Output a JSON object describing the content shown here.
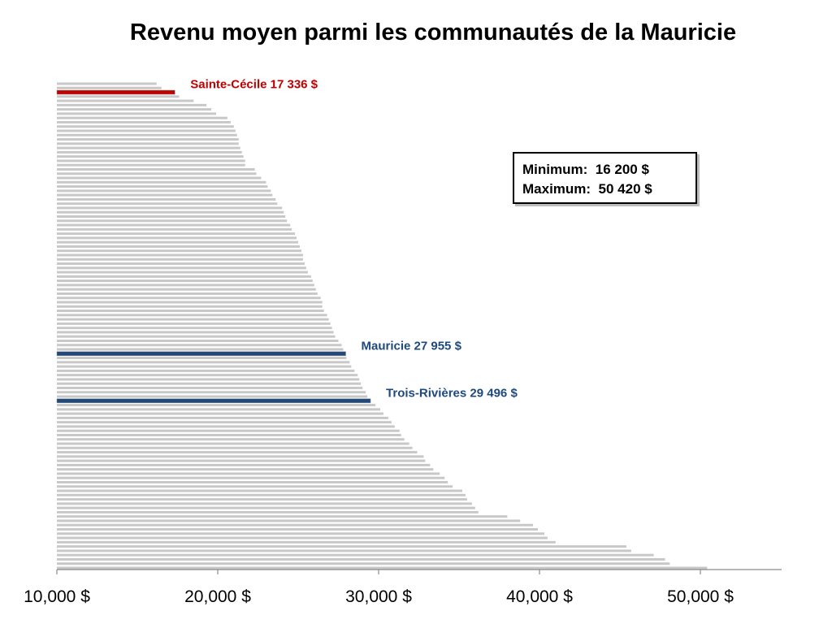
{
  "title": "Revenu moyen parmi les communautés de la Mauricie",
  "stats": {
    "min_label": "Minimum:",
    "min_value": "16 200  $",
    "max_label": "Maximum:",
    "max_value": "50 420  $"
  },
  "chart_data": {
    "type": "bar",
    "orientation": "horizontal",
    "title": "Revenu moyen parmi les communautés de la Mauricie",
    "xlabel": "",
    "ylabel": "",
    "xlim": [
      10000,
      55000
    ],
    "xticks": [
      10000,
      20000,
      30000,
      40000,
      50000
    ],
    "xtick_labels": [
      "10,000 $",
      "20,000 $",
      "30,000 $",
      "40,000 $",
      "50,000 $"
    ],
    "grid": false,
    "colors": {
      "default": "#c8c8c8",
      "highlight_red": "#c00000",
      "highlight_blue": "#1f497d"
    },
    "values": [
      16200,
      16500,
      17336,
      17600,
      18500,
      19300,
      19600,
      19900,
      20600,
      20800,
      21000,
      21100,
      21200,
      21300,
      21300,
      21400,
      21500,
      21600,
      21700,
      21700,
      22300,
      22400,
      22700,
      23000,
      23100,
      23300,
      23400,
      23600,
      23700,
      24000,
      24100,
      24200,
      24300,
      24500,
      24600,
      24800,
      24900,
      25000,
      25100,
      25200,
      25300,
      25300,
      25400,
      25500,
      25600,
      25800,
      25900,
      26000,
      26100,
      26200,
      26400,
      26500,
      26500,
      26600,
      26800,
      26900,
      27000,
      27100,
      27200,
      27300,
      27500,
      27700,
      27800,
      27955,
      28000,
      28200,
      28300,
      28500,
      28700,
      28800,
      28900,
      29000,
      29200,
      29300,
      29496,
      29800,
      30100,
      30300,
      30600,
      30800,
      31000,
      31300,
      31400,
      31600,
      31900,
      32100,
      32400,
      32800,
      32900,
      33200,
      33400,
      33800,
      34100,
      34300,
      34600,
      35200,
      35400,
      35500,
      35800,
      36000,
      36200,
      38000,
      38800,
      39600,
      39900,
      40300,
      40500,
      41000,
      45400,
      45700,
      47100,
      47800,
      48100,
      50420
    ],
    "highlights": [
      {
        "name": "Sainte-Cécile",
        "value": 17336,
        "label": "Sainte-Cécile  17 336  $",
        "color": "#c00000"
      },
      {
        "name": "Mauricie",
        "value": 27955,
        "label": "Mauricie  27 955  $",
        "color": "#1f497d"
      },
      {
        "name": "Trois-Rivières",
        "value": 29496,
        "label": "Trois-Rivières  29 496  $",
        "color": "#1f497d"
      }
    ]
  }
}
